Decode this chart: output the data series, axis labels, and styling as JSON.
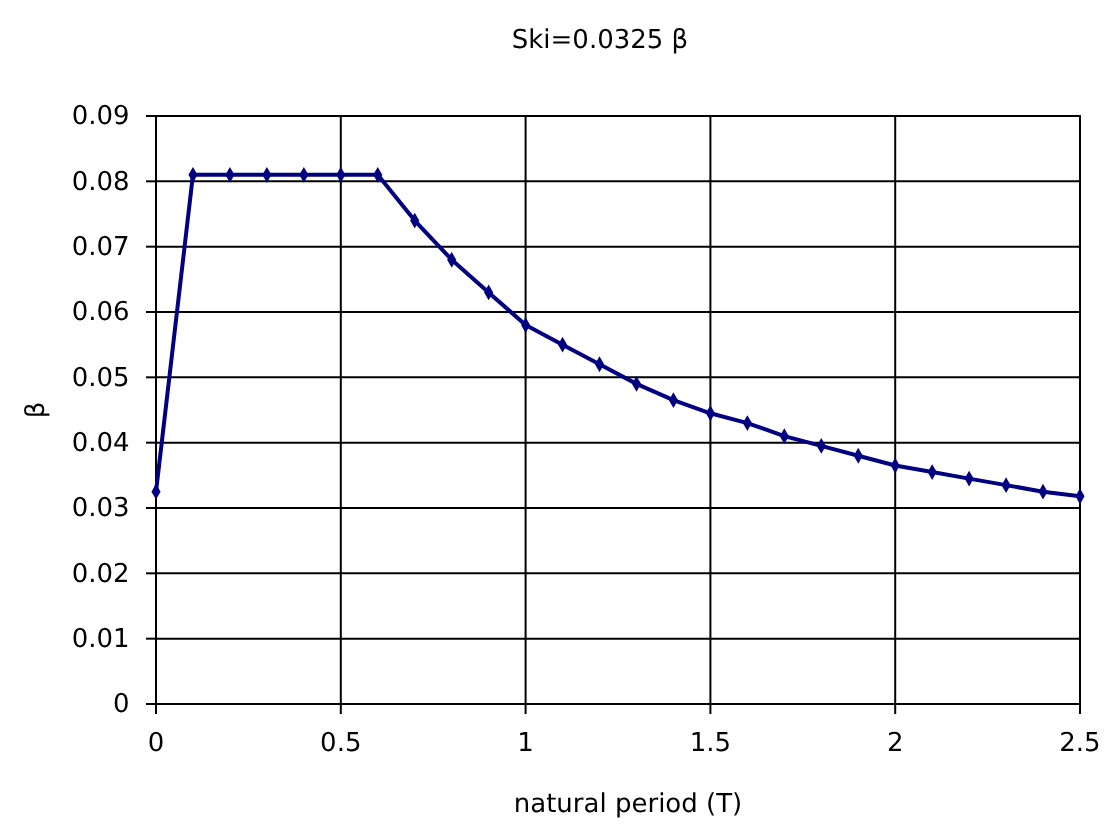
{
  "chart_data": {
    "type": "line",
    "title": "Ski=0.0325 β",
    "xlabel": "natural period (T)",
    "ylabel": "β",
    "x": [
      0,
      0.1,
      0.2,
      0.3,
      0.4,
      0.5,
      0.6,
      0.7,
      0.8,
      0.9,
      1.0,
      1.1,
      1.2,
      1.3,
      1.4,
      1.5,
      1.6,
      1.7,
      1.8,
      1.9,
      2.0,
      2.1,
      2.2,
      2.3,
      2.4,
      2.5
    ],
    "series": [
      {
        "color": "#000080",
        "values": [
          0.0325,
          0.081,
          0.081,
          0.081,
          0.081,
          0.081,
          0.081,
          0.074,
          0.068,
          0.063,
          0.058,
          0.055,
          0.052,
          0.049,
          0.0465,
          0.0445,
          0.043,
          0.041,
          0.0395,
          0.038,
          0.0365,
          0.0355,
          0.0345,
          0.0335,
          0.0325,
          0.0318
        ]
      }
    ],
    "xlim": [
      0,
      2.5
    ],
    "xticks": [
      0,
      0.5,
      1,
      1.5,
      2,
      2.5
    ],
    "ylim": [
      0,
      0.09
    ],
    "yticks": [
      0,
      {
        "value": 0.01,
        "label": "0.01"
      },
      {
        "value": 0.02,
        "label": "0.02"
      },
      {
        "value": 0.03,
        "label": "0.03"
      },
      {
        "value": 0.04,
        "label": "0.04"
      },
      {
        "value": 0.05,
        "label": "0.05"
      },
      {
        "value": 0.06,
        "label": "0.06"
      },
      {
        "value": 0.07,
        "label": "0.07"
      },
      {
        "value": 0.08,
        "label": "0.08"
      },
      {
        "value": 0.09,
        "label": "0.09"
      }
    ],
    "grid": true,
    "marker": "diamond",
    "line_style": "solid"
  }
}
